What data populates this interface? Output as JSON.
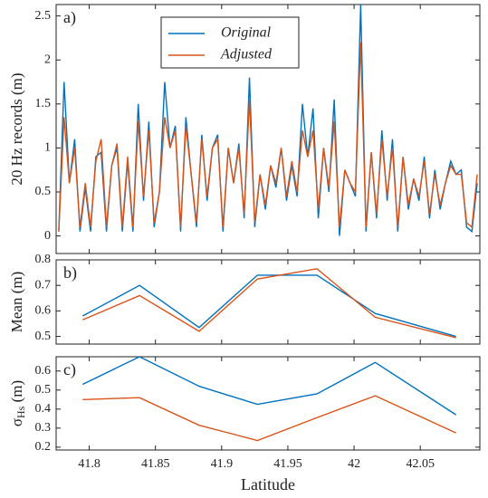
{
  "chart_data": [
    {
      "type": "line",
      "annotation": "a)",
      "ylabel": "20 Hz records (m)",
      "xlim": [
        41.775,
        42.095
      ],
      "xticks": [
        41.8,
        41.85,
        41.9,
        41.95,
        42,
        42.05
      ],
      "ylim": [
        -0.2,
        2.63
      ],
      "yticks": [
        0,
        0.5,
        1,
        1.5,
        2,
        2.5
      ],
      "legend": "top-center",
      "x": [
        41.777,
        41.781,
        41.785,
        41.789,
        41.793,
        41.797,
        41.801,
        41.805,
        41.809,
        41.813,
        41.817,
        41.821,
        41.825,
        41.829,
        41.833,
        41.837,
        41.841,
        41.845,
        41.849,
        41.853,
        41.857,
        41.861,
        41.865,
        41.869,
        41.873,
        41.877,
        41.881,
        41.885,
        41.889,
        41.893,
        41.897,
        41.901,
        41.905,
        41.909,
        41.913,
        41.917,
        41.921,
        41.925,
        41.929,
        41.933,
        41.937,
        41.941,
        41.945,
        41.949,
        41.953,
        41.957,
        41.961,
        41.965,
        41.969,
        41.973,
        41.977,
        41.981,
        41.985,
        41.989,
        41.993,
        41.997,
        42.001,
        42.005,
        42.009,
        42.013,
        42.017,
        42.021,
        42.025,
        42.029,
        42.033,
        42.037,
        42.041,
        42.045,
        42.049,
        42.053,
        42.057,
        42.061,
        42.065,
        42.069,
        42.073,
        42.077,
        42.081,
        42.085,
        42.089,
        42.093
      ],
      "series": [
        {
          "name": "Original",
          "color": "#0072bd",
          "values": [
            0.05,
            1.75,
            0.6,
            1.1,
            0.05,
            0.55,
            0.05,
            0.9,
            0.95,
            0.05,
            0.8,
            1.0,
            0.05,
            0.85,
            0.05,
            1.5,
            0.4,
            1.3,
            0.1,
            0.5,
            1.75,
            1.0,
            1.25,
            0.05,
            1.35,
            0.7,
            0.1,
            1.15,
            0.4,
            1.0,
            1.15,
            0.05,
            1.0,
            0.6,
            1.05,
            0.2,
            1.8,
            0.1,
            0.7,
            0.3,
            0.8,
            0.55,
            1.0,
            0.4,
            0.8,
            0.45,
            1.5,
            0.9,
            1.45,
            0.2,
            1.0,
            0.5,
            1.55,
            0.0,
            0.75,
            0.6,
            0.45,
            2.63,
            0.05,
            0.95,
            0.2,
            1.2,
            0.4,
            1.1,
            0.05,
            0.9,
            0.3,
            0.65,
            0.4,
            0.9,
            0.2,
            0.75,
            0.3,
            0.6,
            0.85,
            0.7,
            0.75,
            0.1,
            0.05,
            0.6
          ]
        },
        {
          "name": "Adjusted",
          "color": "#d95319",
          "values": [
            0.05,
            1.35,
            0.6,
            1.0,
            0.1,
            0.6,
            0.1,
            0.85,
            1.1,
            0.1,
            0.8,
            1.05,
            0.1,
            0.9,
            0.1,
            1.3,
            0.45,
            1.2,
            0.15,
            0.5,
            1.35,
            1.0,
            1.2,
            0.1,
            1.25,
            0.7,
            0.15,
            1.1,
            0.45,
            1.0,
            1.1,
            0.1,
            1.0,
            0.6,
            1.0,
            0.25,
            1.55,
            0.15,
            0.7,
            0.35,
            0.8,
            0.6,
            1.0,
            0.45,
            0.85,
            0.5,
            1.2,
            0.9,
            1.2,
            0.3,
            1.0,
            0.55,
            1.3,
            0.1,
            0.75,
            0.6,
            0.5,
            2.2,
            0.1,
            0.95,
            0.25,
            1.1,
            0.45,
            1.0,
            0.1,
            0.9,
            0.35,
            0.65,
            0.45,
            0.85,
            0.25,
            0.7,
            0.35,
            0.6,
            0.8,
            0.7,
            0.7,
            0.15,
            0.1,
            0.7
          ]
        }
      ]
    },
    {
      "type": "line",
      "annotation": "b)",
      "ylabel": "Mean (m)",
      "xlim": [
        41.775,
        42.095
      ],
      "xticks": [
        41.8,
        41.85,
        41.9,
        41.95,
        42,
        42.05
      ],
      "ylim": [
        0.47,
        0.8
      ],
      "yticks": [
        0.5,
        0.6,
        0.7,
        0.8
      ],
      "x": [
        41.795,
        41.838,
        41.883,
        41.927,
        41.972,
        42.016,
        42.077
      ],
      "series": [
        {
          "name": "Original",
          "color": "#0072bd",
          "values": [
            0.58,
            0.7,
            0.535,
            0.74,
            0.74,
            0.59,
            0.5
          ]
        },
        {
          "name": "Adjusted",
          "color": "#d95319",
          "values": [
            0.565,
            0.66,
            0.52,
            0.725,
            0.765,
            0.575,
            0.495
          ]
        }
      ]
    },
    {
      "type": "line",
      "annotation": "c)",
      "ylabel": "σ",
      "ylabel_sub": "Hs",
      "ylabel_unit": " (m)",
      "xlabel": "Latitude",
      "xlim": [
        41.775,
        42.095
      ],
      "xticks": [
        41.8,
        41.85,
        41.9,
        41.95,
        42,
        42.05
      ],
      "ylim": [
        0.185,
        0.675
      ],
      "yticks": [
        0.2,
        0.3,
        0.4,
        0.5,
        0.6
      ],
      "x": [
        41.795,
        41.838,
        41.883,
        41.927,
        41.972,
        42.016,
        42.077
      ],
      "series": [
        {
          "name": "Original",
          "color": "#0072bd",
          "values": [
            0.53,
            0.675,
            0.52,
            0.425,
            0.48,
            0.645,
            0.37
          ]
        },
        {
          "name": "Adjusted",
          "color": "#d95319",
          "values": [
            0.45,
            0.46,
            0.315,
            0.235,
            0.355,
            0.47,
            0.275
          ]
        }
      ]
    }
  ]
}
